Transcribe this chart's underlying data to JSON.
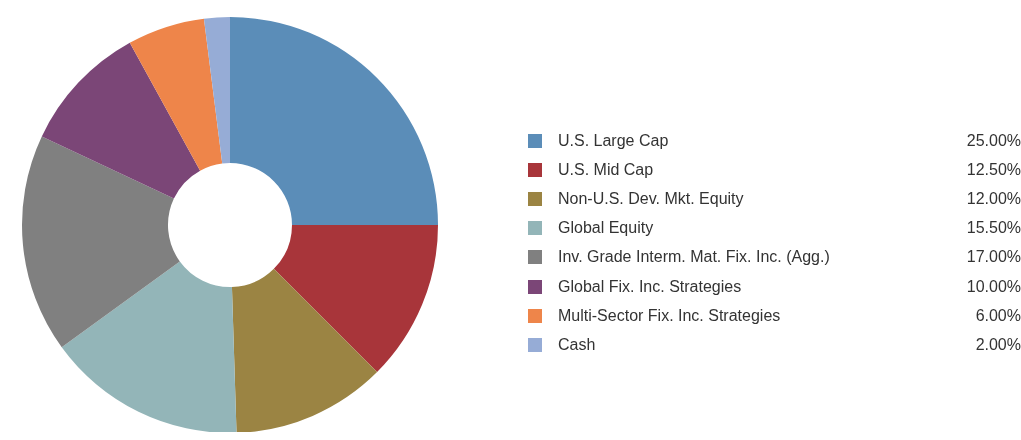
{
  "chart_data": {
    "type": "donut",
    "categories": [
      "U.S. Large Cap",
      "U.S. Mid Cap",
      "Non-U.S. Dev. Mkt. Equity",
      "Global Equity",
      "Inv. Grade Interm. Mat. Fix. Inc. (Agg.)",
      "Global Fix. Inc. Strategies",
      "Multi-Sector Fix. Inc. Strategies",
      "Cash"
    ],
    "values": [
      25,
      12.5,
      12,
      15.5,
      17,
      10,
      6,
      2
    ],
    "colors": [
      "#5b8db8",
      "#a8353a",
      "#9b8443",
      "#93b5b8",
      "#808080",
      "#7b4677",
      "#ee854a",
      "#96acd6"
    ],
    "value_labels": [
      "25.00%",
      "12.50%",
      "12.00%",
      "15.50%",
      "17.00%",
      "10.00%",
      "6.00%",
      "2.00%"
    ],
    "legend": "right"
  }
}
